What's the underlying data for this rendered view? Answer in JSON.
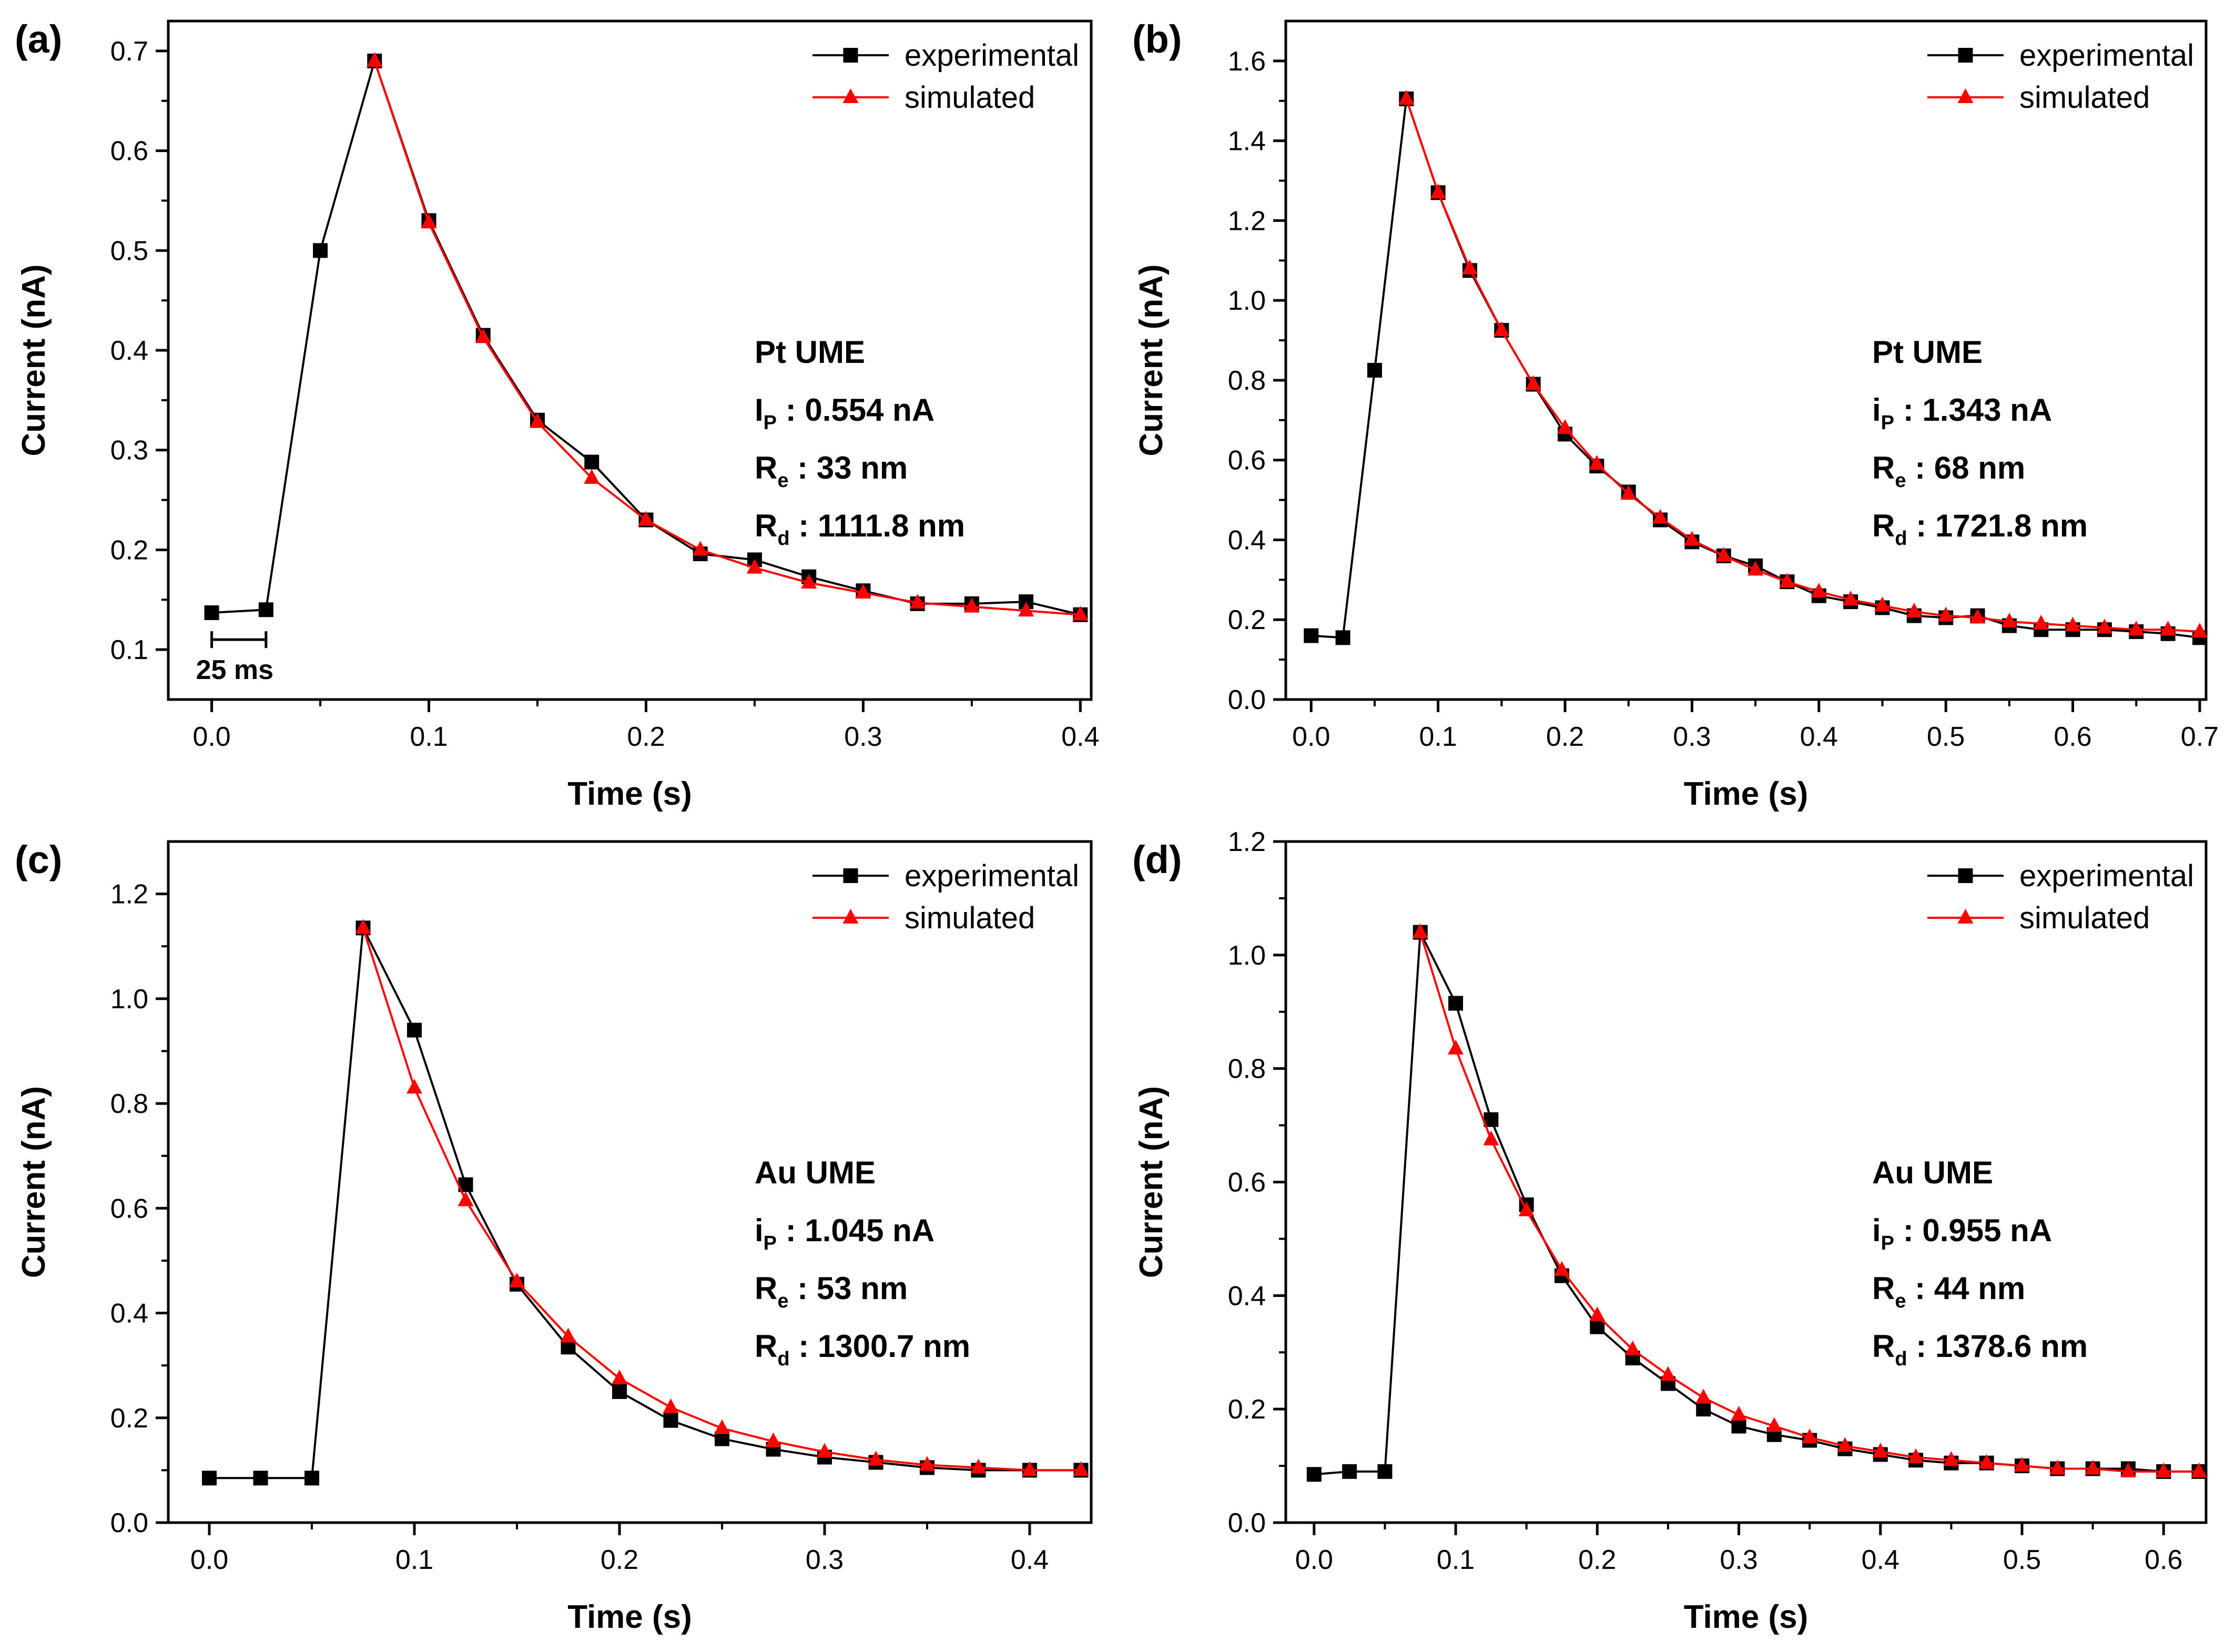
{
  "chart_data": [
    {
      "type": "line",
      "panel_label": "(a)",
      "xlabel": "Time (s)",
      "ylabel": "Current (nA)",
      "xlim": [
        -0.02,
        0.405
      ],
      "ylim": [
        0.05,
        0.73
      ],
      "xticks": [
        0.0,
        0.1,
        0.2,
        0.3,
        0.4
      ],
      "xtick_labels": [
        "0.0",
        "0.1",
        "0.2",
        "0.3",
        "0.4"
      ],
      "yticks": [
        0.1,
        0.2,
        0.3,
        0.4,
        0.5,
        0.6,
        0.7
      ],
      "ytick_labels": [
        "0.1",
        "0.2",
        "0.3",
        "0.4",
        "0.5",
        "0.6",
        "0.7"
      ],
      "legend_position": "top-right",
      "series": [
        {
          "name": "experimental",
          "color": "#000000",
          "marker": "square",
          "x": [
            0.0,
            0.025,
            0.05,
            0.075,
            0.1,
            0.125,
            0.15,
            0.175,
            0.2,
            0.225,
            0.25,
            0.275,
            0.3,
            0.325,
            0.35,
            0.375,
            0.4
          ],
          "y": [
            0.137,
            0.14,
            0.5,
            0.69,
            0.53,
            0.415,
            0.33,
            0.288,
            0.23,
            0.196,
            0.19,
            0.173,
            0.159,
            0.146,
            0.146,
            0.148,
            0.135
          ]
        },
        {
          "name": "simulated",
          "color": "#ff0000",
          "marker": "triangle",
          "x": [
            0.075,
            0.1,
            0.125,
            0.15,
            0.175,
            0.2,
            0.225,
            0.25,
            0.275,
            0.3,
            0.325,
            0.35,
            0.375,
            0.4
          ],
          "y": [
            0.69,
            0.528,
            0.413,
            0.328,
            0.272,
            0.23,
            0.2,
            0.182,
            0.167,
            0.157,
            0.147,
            0.143,
            0.139,
            0.135
          ]
        }
      ],
      "annotation": {
        "title": "Pt UME",
        "lines": [
          {
            "main": "I",
            "sub": "P",
            "text": " : 0.554 nA"
          },
          {
            "main": "R",
            "sub": "e",
            "text": " : 33 nm"
          },
          {
            "main": "R",
            "sub": "d",
            "text": " : 1111.8 nm"
          }
        ]
      },
      "scale_bar": {
        "label": "25 ms",
        "x_start": 0.0,
        "x_end": 0.025,
        "y": 0.11
      }
    },
    {
      "type": "line",
      "panel_label": "(b)",
      "xlabel": "Time (s)",
      "ylabel": "Current (nA)",
      "xlim": [
        -0.02,
        0.705
      ],
      "ylim": [
        0.0,
        1.7
      ],
      "xticks": [
        0.0,
        0.1,
        0.2,
        0.3,
        0.4,
        0.5,
        0.6,
        0.7
      ],
      "xtick_labels": [
        "0.0",
        "0.1",
        "0.2",
        "0.3",
        "0.4",
        "0.5",
        "0.6",
        "0.7"
      ],
      "yticks": [
        0.0,
        0.2,
        0.4,
        0.6,
        0.8,
        1.0,
        1.2,
        1.4,
        1.6
      ],
      "ytick_labels": [
        "0.0",
        "0.2",
        "0.4",
        "0.6",
        "0.8",
        "1.0",
        "1.2",
        "1.4",
        "1.6"
      ],
      "legend_position": "top-right",
      "series": [
        {
          "name": "experimental",
          "color": "#000000",
          "marker": "square",
          "x": [
            0.0,
            0.025,
            0.05,
            0.075,
            0.1,
            0.125,
            0.15,
            0.175,
            0.2,
            0.225,
            0.25,
            0.275,
            0.3,
            0.325,
            0.35,
            0.375,
            0.4,
            0.425,
            0.45,
            0.475,
            0.5,
            0.525,
            0.55,
            0.575,
            0.6,
            0.625,
            0.65,
            0.675,
            0.7
          ],
          "y": [
            0.16,
            0.155,
            0.825,
            1.505,
            1.27,
            1.075,
            0.925,
            0.79,
            0.665,
            0.585,
            0.52,
            0.45,
            0.395,
            0.36,
            0.335,
            0.295,
            0.26,
            0.245,
            0.23,
            0.21,
            0.205,
            0.21,
            0.185,
            0.175,
            0.175,
            0.175,
            0.17,
            0.165,
            0.155
          ]
        },
        {
          "name": "simulated",
          "color": "#ff0000",
          "marker": "triangle",
          "x": [
            0.075,
            0.1,
            0.125,
            0.15,
            0.175,
            0.2,
            0.225,
            0.25,
            0.275,
            0.3,
            0.325,
            0.35,
            0.375,
            0.4,
            0.425,
            0.45,
            0.475,
            0.5,
            0.525,
            0.55,
            0.575,
            0.6,
            0.625,
            0.65,
            0.675,
            0.7
          ],
          "y": [
            1.505,
            1.27,
            1.08,
            0.925,
            0.79,
            0.68,
            0.59,
            0.515,
            0.455,
            0.4,
            0.36,
            0.325,
            0.295,
            0.27,
            0.25,
            0.235,
            0.22,
            0.21,
            0.205,
            0.195,
            0.19,
            0.185,
            0.18,
            0.175,
            0.175,
            0.17
          ]
        }
      ],
      "annotation": {
        "title": "Pt UME",
        "lines": [
          {
            "main": "i",
            "sub": "P",
            "text": " : 1.343 nA"
          },
          {
            "main": "R",
            "sub": "e",
            "text": " : 68 nm"
          },
          {
            "main": "R",
            "sub": "d",
            "text": " : 1721.8 nm"
          }
        ]
      }
    },
    {
      "type": "line",
      "panel_label": "(c)",
      "xlabel": "Time (s)",
      "ylabel": "Current (nA)",
      "xlim": [
        -0.02,
        0.43
      ],
      "ylim": [
        0.0,
        1.3
      ],
      "xticks": [
        0.0,
        0.1,
        0.2,
        0.3,
        0.4
      ],
      "xtick_labels": [
        "0.0",
        "0.1",
        "0.2",
        "0.3",
        "0.4"
      ],
      "yticks": [
        0.0,
        0.2,
        0.4,
        0.6,
        0.8,
        1.0,
        1.2
      ],
      "ytick_labels": [
        "0.0",
        "0.2",
        "0.4",
        "0.6",
        "0.8",
        "1.0",
        "1.2"
      ],
      "legend_position": "top-right",
      "series": [
        {
          "name": "experimental",
          "color": "#000000",
          "marker": "square",
          "x": [
            0.0,
            0.025,
            0.05,
            0.075,
            0.1,
            0.125,
            0.15,
            0.175,
            0.2,
            0.225,
            0.25,
            0.275,
            0.3,
            0.325,
            0.35,
            0.375,
            0.4,
            0.425
          ],
          "y": [
            0.085,
            0.085,
            0.085,
            1.135,
            0.94,
            0.645,
            0.455,
            0.335,
            0.25,
            0.195,
            0.16,
            0.14,
            0.125,
            0.115,
            0.105,
            0.1,
            0.1,
            0.1
          ]
        },
        {
          "name": "simulated",
          "color": "#ff0000",
          "marker": "triangle",
          "x": [
            0.075,
            0.1,
            0.125,
            0.15,
            0.175,
            0.2,
            0.225,
            0.25,
            0.275,
            0.3,
            0.325,
            0.35,
            0.375,
            0.4,
            0.425
          ],
          "y": [
            1.135,
            0.83,
            0.615,
            0.46,
            0.355,
            0.275,
            0.22,
            0.18,
            0.155,
            0.135,
            0.12,
            0.11,
            0.105,
            0.1,
            0.1
          ]
        }
      ],
      "annotation": {
        "title": "Au UME",
        "lines": [
          {
            "main": "i",
            "sub": "P",
            "text": " : 1.045 nA"
          },
          {
            "main": "R",
            "sub": "e",
            "text": " : 53 nm"
          },
          {
            "main": "R",
            "sub": "d",
            "text": " : 1300.7 nm"
          }
        ]
      }
    },
    {
      "type": "line",
      "panel_label": "(d)",
      "xlabel": "Time (s)",
      "ylabel": "Current (nA)",
      "xlim": [
        -0.02,
        0.63
      ],
      "ylim": [
        0.0,
        1.2
      ],
      "xticks": [
        0.0,
        0.1,
        0.2,
        0.3,
        0.4,
        0.5,
        0.6
      ],
      "xtick_labels": [
        "0.0",
        "0.1",
        "0.2",
        "0.3",
        "0.4",
        "0.5",
        "0.6"
      ],
      "yticks": [
        0.0,
        0.2,
        0.4,
        0.6,
        0.8,
        1.0,
        1.2
      ],
      "ytick_labels": [
        "0.0",
        "0.2",
        "0.4",
        "0.6",
        "0.8",
        "1.0",
        "1.2"
      ],
      "legend_position": "top-right",
      "series": [
        {
          "name": "experimental",
          "color": "#000000",
          "marker": "square",
          "x": [
            0.0,
            0.025,
            0.05,
            0.075,
            0.1,
            0.125,
            0.15,
            0.175,
            0.2,
            0.225,
            0.25,
            0.275,
            0.3,
            0.325,
            0.35,
            0.375,
            0.4,
            0.425,
            0.45,
            0.475,
            0.5,
            0.525,
            0.55,
            0.575,
            0.6,
            0.625
          ],
          "y": [
            0.085,
            0.09,
            0.09,
            1.04,
            0.915,
            0.71,
            0.56,
            0.435,
            0.345,
            0.29,
            0.245,
            0.2,
            0.17,
            0.155,
            0.145,
            0.13,
            0.12,
            0.11,
            0.105,
            0.105,
            0.1,
            0.095,
            0.095,
            0.095,
            0.09,
            0.09
          ]
        },
        {
          "name": "simulated",
          "color": "#ff0000",
          "marker": "triangle",
          "x": [
            0.075,
            0.1,
            0.125,
            0.15,
            0.175,
            0.2,
            0.225,
            0.25,
            0.275,
            0.3,
            0.325,
            0.35,
            0.375,
            0.4,
            0.425,
            0.45,
            0.475,
            0.5,
            0.525,
            0.55,
            0.575,
            0.6,
            0.625
          ],
          "y": [
            1.04,
            0.835,
            0.675,
            0.55,
            0.445,
            0.365,
            0.305,
            0.26,
            0.22,
            0.19,
            0.17,
            0.15,
            0.135,
            0.125,
            0.115,
            0.11,
            0.105,
            0.1,
            0.095,
            0.095,
            0.09,
            0.09,
            0.09
          ]
        }
      ],
      "annotation": {
        "title": "Au UME",
        "lines": [
          {
            "main": "i",
            "sub": "P",
            "text": " : 0.955 nA"
          },
          {
            "main": "R",
            "sub": "e",
            "text": " : 44 nm"
          },
          {
            "main": "R",
            "sub": "d",
            "text": " : 1378.6 nm"
          }
        ]
      }
    }
  ]
}
